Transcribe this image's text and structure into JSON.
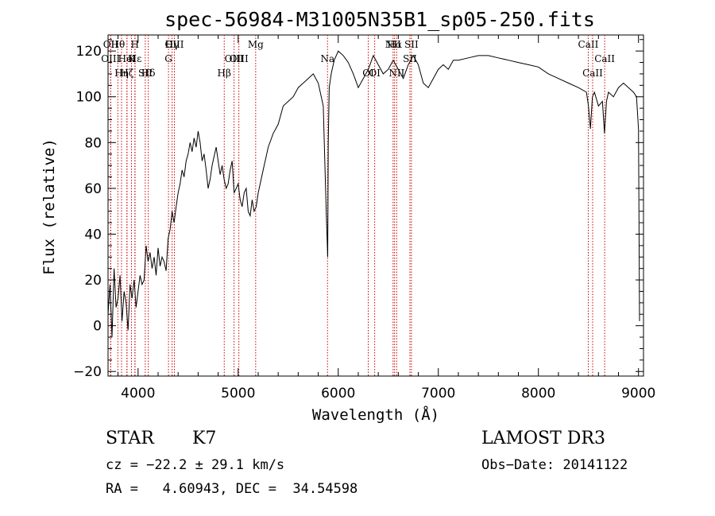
{
  "chart_data": {
    "type": "line",
    "title": "spec-56984-M31005N35B1_sp05-250.fits",
    "xlabel": "Wavelength (Å)",
    "ylabel": "Flux (relative)",
    "xlim": [
      3700,
      9050
    ],
    "ylim": [
      -22,
      127
    ],
    "x_ticks": [
      4000,
      5000,
      6000,
      7000,
      8000,
      9000
    ],
    "y_ticks": [
      -20,
      0,
      20,
      40,
      60,
      80,
      100,
      120
    ],
    "grid": false,
    "series": [
      {
        "name": "spectrum",
        "x": [
          3700,
          3720,
          3740,
          3760,
          3780,
          3800,
          3820,
          3840,
          3860,
          3880,
          3900,
          3920,
          3940,
          3960,
          3980,
          4000,
          4020,
          4040,
          4060,
          4080,
          4100,
          4120,
          4140,
          4160,
          4180,
          4200,
          4220,
          4240,
          4260,
          4280,
          4300,
          4320,
          4340,
          4360,
          4380,
          4400,
          4420,
          4440,
          4460,
          4480,
          4500,
          4520,
          4540,
          4560,
          4580,
          4600,
          4620,
          4640,
          4660,
          4680,
          4700,
          4720,
          4740,
          4760,
          4780,
          4800,
          4820,
          4840,
          4860,
          4880,
          4900,
          4920,
          4940,
          4960,
          4980,
          5000,
          5020,
          5040,
          5060,
          5080,
          5100,
          5120,
          5140,
          5160,
          5180,
          5200,
          5220,
          5240,
          5260,
          5280,
          5300,
          5350,
          5400,
          5450,
          5500,
          5550,
          5600,
          5650,
          5700,
          5750,
          5800,
          5850,
          5880,
          5895,
          5900,
          5910,
          5930,
          5960,
          6000,
          6050,
          6100,
          6150,
          6200,
          6250,
          6300,
          6350,
          6400,
          6450,
          6500,
          6550,
          6600,
          6650,
          6700,
          6750,
          6800,
          6850,
          6900,
          6950,
          7000,
          7050,
          7100,
          7150,
          7200,
          7300,
          7400,
          7500,
          7600,
          7700,
          7800,
          7900,
          8000,
          8100,
          8200,
          8300,
          8400,
          8480,
          8500,
          8520,
          8540,
          8560,
          8600,
          8640,
          8660,
          8680,
          8700,
          8750,
          8800,
          8850,
          8900,
          8950,
          8980,
          9000,
          9010
        ],
        "y": [
          5,
          18,
          -5,
          25,
          8,
          12,
          22,
          2,
          15,
          10,
          -2,
          18,
          12,
          20,
          8,
          15,
          22,
          18,
          20,
          35,
          28,
          32,
          25,
          30,
          22,
          34,
          26,
          30,
          28,
          24,
          38,
          42,
          50,
          45,
          52,
          58,
          62,
          68,
          65,
          72,
          75,
          80,
          76,
          82,
          78,
          85,
          80,
          72,
          75,
          68,
          60,
          64,
          70,
          74,
          78,
          72,
          66,
          70,
          64,
          60,
          62,
          68,
          72,
          58,
          60,
          62,
          55,
          52,
          58,
          60,
          50,
          48,
          55,
          50,
          52,
          58,
          62,
          66,
          70,
          74,
          78,
          84,
          88,
          96,
          98,
          100,
          104,
          106,
          108,
          110,
          106,
          96,
          50,
          30,
          80,
          104,
          110,
          116,
          120,
          118,
          115,
          110,
          104,
          108,
          112,
          118,
          114,
          110,
          112,
          116,
          112,
          108,
          114,
          118,
          114,
          106,
          104,
          108,
          112,
          114,
          112,
          116,
          116,
          117,
          118,
          118,
          117,
          116,
          115,
          114,
          113,
          110,
          108,
          106,
          104,
          102,
          96,
          86,
          100,
          102,
          96,
          98,
          84,
          98,
          102,
          100,
          104,
          106,
          104,
          102,
          100,
          86,
          2
        ],
        "color": "#000000"
      }
    ],
    "markers": [
      {
        "label": "Hθ",
        "x": 3798
      },
      {
        "label": "K",
        "x": 3934
      },
      {
        "label": "Hδ",
        "x": 4102
      },
      {
        "label": "OIII",
        "x": 4363
      },
      {
        "label": "OIII",
        "x": 4959
      },
      {
        "label": "OI",
        "x": 6300
      },
      {
        "label": "Hα",
        "x": 6563
      },
      {
        "label": "SII",
        "x": 6716
      },
      {
        "label": "CaII",
        "x": 8542
      },
      {
        "label": "OII",
        "x": 3727
      },
      {
        "label": "HeI",
        "x": 3889
      },
      {
        "label": "SII",
        "x": 4072
      },
      {
        "label": "Hγ",
        "x": 4340
      },
      {
        "label": "OIII",
        "x": 5007
      },
      {
        "label": "NII",
        "x": 6584
      },
      {
        "label": "CaII",
        "x": 8498
      },
      {
        "label": "OIII",
        "x": 3726
      },
      {
        "label": "Hη",
        "x": 3835
      },
      {
        "label": "H",
        "x": 3968
      },
      {
        "label": "G",
        "x": 4304
      },
      {
        "label": "Hβ",
        "x": 4861
      },
      {
        "label": "Mg",
        "x": 5175
      },
      {
        "label": "Na",
        "x": 5893
      },
      {
        "label": "OI",
        "x": 6364
      },
      {
        "label": "NII",
        "x": 6548
      },
      {
        "label": "Hε",
        "x": 3970
      },
      {
        "label": "Hζ",
        "x": 3889
      },
      {
        "label": "SII",
        "x": 6731
      },
      {
        "label": "CaII",
        "x": 8662
      }
    ]
  },
  "info": {
    "object_class": "STAR",
    "subclass": "K7",
    "survey": "LAMOST DR3",
    "cz": "cz = −22.2 ± 29.1 km/s",
    "obs_date": "Obs−Date: 20141122",
    "coords": "RA =   4.60943, DEC =  34.54598"
  }
}
